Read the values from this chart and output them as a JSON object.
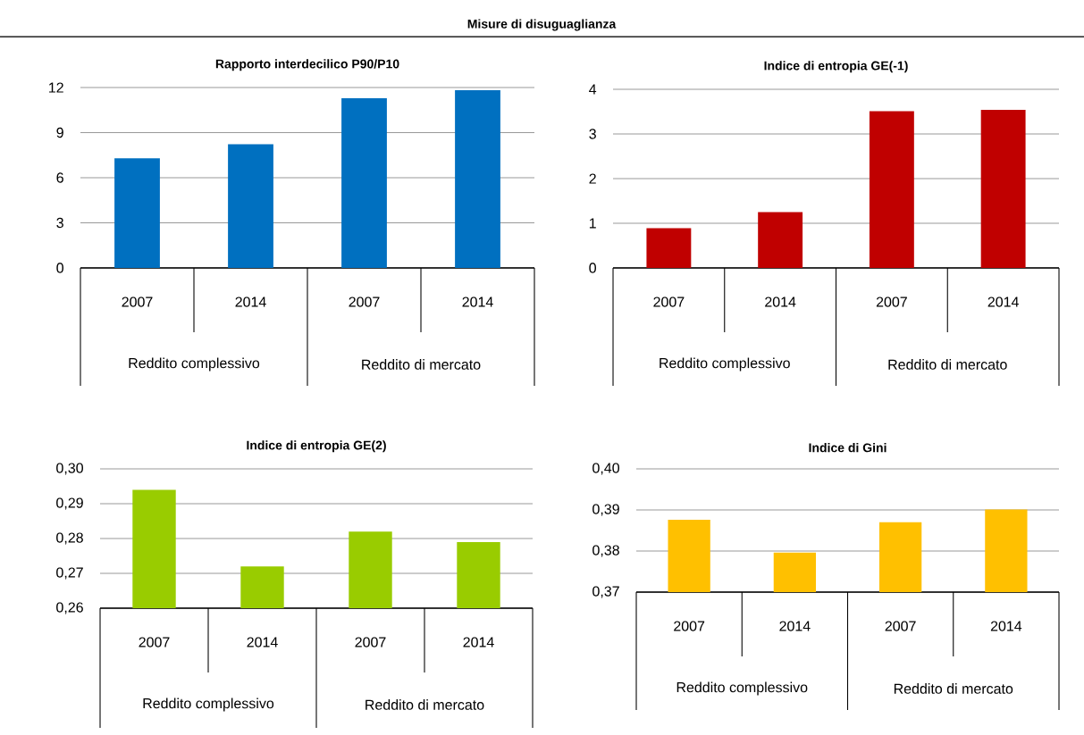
{
  "chart_data": [
    {
      "type": "other",
      "title": "Misure di disuguaglianza"
    },
    {
      "type": "bar",
      "title": "Rapporto interdecilico P90/P10",
      "categories": [
        "2007",
        "2014",
        "2007",
        "2014"
      ],
      "values": [
        7.29,
        8.23,
        11.29,
        11.82
      ],
      "color": "#0070c0",
      "ylim": [
        0,
        12
      ],
      "yticks": [
        0,
        3,
        6,
        9,
        12
      ],
      "grid": "y",
      "annotations": [
        "Reddito complessivo",
        "Reddito di mercato"
      ]
    },
    {
      "type": "bar",
      "title": "Indice di entropia GE(-1)",
      "categories": [
        "2007",
        "2014",
        "2007",
        "2014"
      ],
      "values": [
        0.89,
        1.25,
        3.51,
        3.54
      ],
      "color": "#c00000",
      "ylim": [
        0,
        4
      ],
      "yticks": [
        0,
        1,
        2,
        3,
        4
      ],
      "grid": "y",
      "annotations": [
        "Reddito complessivo",
        "Reddito di mercato"
      ]
    },
    {
      "type": "bar",
      "title": "Indice di entropia GE(2)",
      "categories": [
        "2007",
        "2014",
        "2007",
        "2014"
      ],
      "values": [
        0.294,
        0.272,
        0.282,
        0.279
      ],
      "color": "#99cc00",
      "ylim": [
        0.26,
        0.3
      ],
      "yticks": [
        {
          "value": 0.26,
          "label": "0,26"
        },
        {
          "value": 0.27,
          "label": "0,27"
        },
        {
          "value": 0.28,
          "label": "0,28"
        },
        {
          "value": 0.29,
          "label": "0,29"
        },
        {
          "value": 0.3,
          "label": "0,30"
        }
      ],
      "grid": "y",
      "annotations": [
        "Reddito complessivo",
        "Reddito di mercato"
      ]
    },
    {
      "type": "bar",
      "title": "Indice di Gini",
      "categories": [
        "2007",
        "2014",
        "2007",
        "2014"
      ],
      "values": [
        0.3876,
        0.3796,
        0.387,
        0.3901
      ],
      "color": "#ffc000",
      "ylim": [
        0.37,
        0.4
      ],
      "yticks": [
        {
          "value": 0.37,
          "label": "0,37"
        },
        {
          "value": 0.38,
          "label": "0,38"
        },
        {
          "value": 0.39,
          "label": "0,39"
        },
        {
          "value": 0.4,
          "label": "0,40"
        }
      ],
      "grid": "y",
      "annotations": [
        "Reddito complessivo",
        "Reddito di mercato"
      ]
    }
  ]
}
